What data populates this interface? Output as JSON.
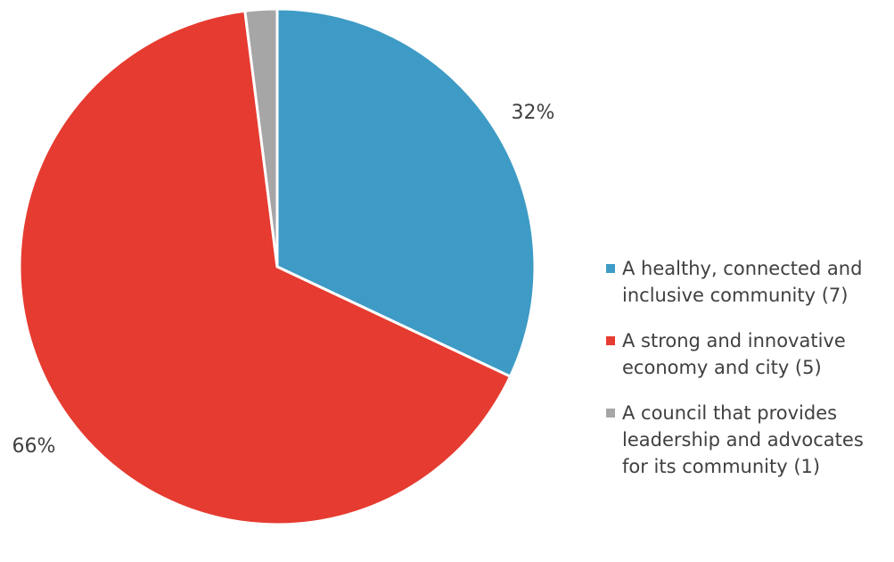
{
  "chart_data": {
    "type": "pie",
    "title": "",
    "start_angle_degrees": 0,
    "direction": "clockwise",
    "slices": [
      {
        "label": "A healthy, connected and inclusive community (7)",
        "legend_line1": "A healthy, connected and",
        "legend_line2": "inclusive community (7)",
        "legend_line3": "",
        "value": 32,
        "display_label": "32%",
        "color": "#3e9bc5"
      },
      {
        "label": "A strong and innovative economy and city (5)",
        "legend_line1": "A strong and innovative",
        "legend_line2": "economy and city (5)",
        "legend_line3": "",
        "value": 66,
        "display_label": "66%",
        "color": "#e63b30"
      },
      {
        "label": "A council that provides leadership and advocates for its community (1)",
        "legend_line1": "A council that provides",
        "legend_line2": "leadership and advocates",
        "legend_line3": "for its community (1)",
        "value": 2,
        "display_label": "",
        "color": "#a6a6a6"
      }
    ],
    "legend_position": "right"
  }
}
